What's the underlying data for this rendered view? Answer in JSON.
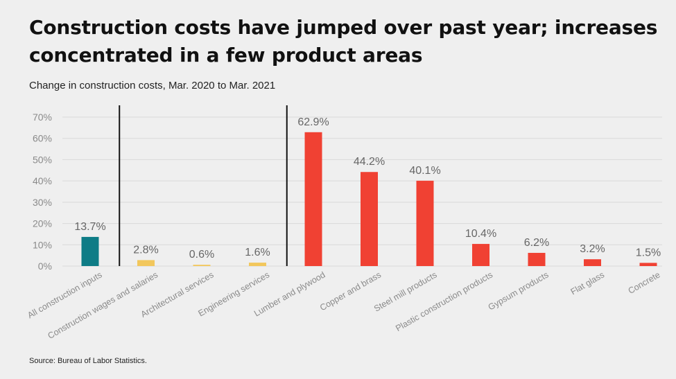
{
  "title": "Construction costs have jumped over past year; increases concentrated in a few product areas",
  "subtitle": "Change in construction costs, Mar. 2020 to Mar. 2021",
  "source": "Source: Bureau of Labor Statistics.",
  "chart_data": {
    "type": "bar",
    "categories": [
      "All construction inputs",
      "Construction wages and salaries",
      "Architectural services",
      "Engineering services",
      "Lumber and plywood",
      "Copper and brass",
      "Steel mill products",
      "Plastic construction products",
      "Gypsum products",
      "Flat glass",
      "Concrete"
    ],
    "values": [
      13.7,
      2.8,
      0.6,
      1.6,
      62.9,
      44.2,
      40.1,
      10.4,
      6.2,
      3.2,
      1.5
    ],
    "value_labels": [
      "13.7%",
      "2.8%",
      "0.6%",
      "1.6%",
      "62.9%",
      "44.2%",
      "40.1%",
      "10.4%",
      "6.2%",
      "3.2%",
      "1.5%"
    ],
    "groups": [
      {
        "categories": [
          0
        ],
        "color": "#0e7c86"
      },
      {
        "categories": [
          1,
          2,
          3
        ],
        "color": "#f2c75c"
      },
      {
        "categories": [
          4,
          5,
          6,
          7,
          8,
          9,
          10
        ],
        "color": "#f04133"
      }
    ],
    "ylim": [
      0,
      70
    ],
    "yticks": [
      0,
      10,
      20,
      30,
      40,
      50,
      60,
      70
    ],
    "ytick_labels": [
      "0%",
      "10%",
      "20%",
      "30%",
      "40%",
      "50%",
      "60%",
      "70%"
    ],
    "grid": true,
    "legend": "none",
    "xlabel": "",
    "ylabel": ""
  }
}
